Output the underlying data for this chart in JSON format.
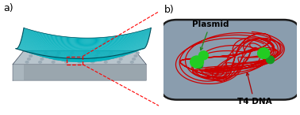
{
  "fig_width": 3.78,
  "fig_height": 1.46,
  "dpi": 100,
  "bg_color": "#ffffff",
  "label_a": "a)",
  "label_b": "b)",
  "label_fontsize": 9,
  "panel_b_bg": "#8a9dae",
  "panel_b_border": "#cccccc",
  "plasmid_label": "Plasmid",
  "plasmid_label_fontsize": 7.5,
  "t4dna_label": "T4 DNA",
  "t4dna_label_fontsize": 7.5,
  "teal_top": "#00b5c8",
  "teal_mid": "#009aaa",
  "teal_dark": "#006e7e",
  "teal_edge": "#004f5c",
  "slab_top": "#b8c4cc",
  "slab_front": "#9aa6ae",
  "slab_left": "#aab6be",
  "slab_dots": "#9aaab5",
  "dna_color": "#cc0000",
  "green_color": "#22cc22",
  "cell_outline": "#1a1a1a",
  "cell_fill": "#8a9dae",
  "red_line": "#cc0000"
}
